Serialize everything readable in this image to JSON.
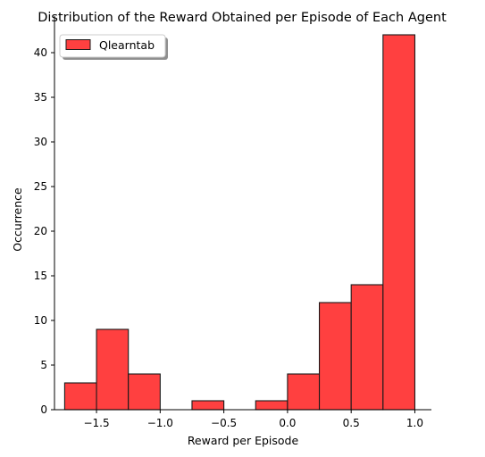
{
  "chart_data": {
    "type": "bar",
    "title": "Distribution of the Reward Obtained per Episode of Each Agent",
    "xlabel": "Reward per Episode",
    "ylabel": "Occurrence",
    "xlim": [
      -1.83,
      1.13
    ],
    "ylim": [
      0,
      44.1
    ],
    "grid": false,
    "legend_position": "top-left",
    "bar_color": "#ff4040",
    "edge_color": "#1a1a1a",
    "x_ticks": [
      -1.5,
      -1.0,
      -0.5,
      0.0,
      0.5,
      1.0
    ],
    "x_tick_labels": [
      "−1.5",
      "−1.0",
      "−0.5",
      "0.0",
      "0.5",
      "1.0"
    ],
    "y_ticks": [
      0,
      5,
      10,
      15,
      20,
      25,
      30,
      35,
      40
    ],
    "y_tick_labels": [
      "0",
      "5",
      "10",
      "15",
      "20",
      "25",
      "30",
      "35",
      "40"
    ],
    "series": [
      {
        "name": "Qlearntab",
        "bins": [
          {
            "x0": -1.75,
            "x1": -1.5,
            "count": 3
          },
          {
            "x0": -1.5,
            "x1": -1.25,
            "count": 9
          },
          {
            "x0": -1.25,
            "x1": -1.0,
            "count": 4
          },
          {
            "x0": -1.0,
            "x1": -0.75,
            "count": 0
          },
          {
            "x0": -0.75,
            "x1": -0.5,
            "count": 1
          },
          {
            "x0": -0.5,
            "x1": -0.25,
            "count": 0
          },
          {
            "x0": -0.25,
            "x1": 0.0,
            "count": 1
          },
          {
            "x0": 0.0,
            "x1": 0.25,
            "count": 4
          },
          {
            "x0": 0.25,
            "x1": 0.5,
            "count": 12
          },
          {
            "x0": 0.5,
            "x1": 0.75,
            "count": 14
          },
          {
            "x0": 0.75,
            "x1": 1.0,
            "count": 42
          }
        ]
      }
    ]
  }
}
